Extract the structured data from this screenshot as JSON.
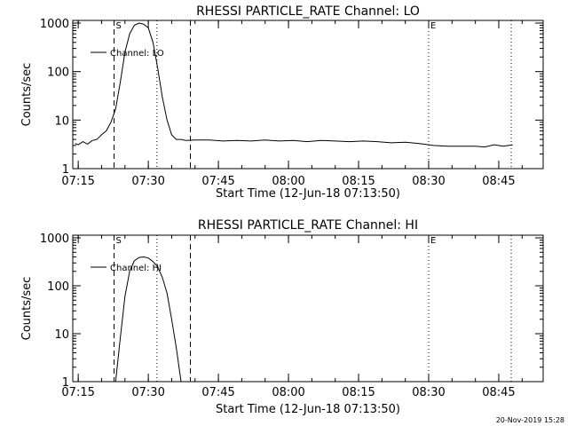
{
  "chart_data": [
    {
      "type": "line",
      "title": "RHESSI PARTICLE_RATE Channel: LO",
      "xlabel": "Start Time (12-Jun-18 07:13:50)",
      "ylabel": "Counts/sec",
      "yscale": "log",
      "ylim": [
        1,
        1000
      ],
      "xlim": [
        "07:13:50",
        "08:54:30"
      ],
      "x_ticks": [
        "07:15",
        "07:30",
        "07:45",
        "08:00",
        "08:15",
        "08:30",
        "08:45"
      ],
      "y_ticks": [
        "1",
        "10",
        "100",
        "1000"
      ],
      "legend": {
        "position": "top-left",
        "entries": [
          "Channel: LO"
        ]
      },
      "markers": [
        {
          "label": "S",
          "time": "07:22:40",
          "style": "dashed"
        },
        {
          "label": "",
          "time": "07:39:00",
          "style": "dashed"
        },
        {
          "label": "",
          "time": "07:31:50",
          "style": "dotted"
        },
        {
          "label": "E",
          "time": "08:30:00",
          "style": "dotted"
        },
        {
          "label": "",
          "time": "08:47:40",
          "style": "dotted"
        }
      ],
      "series": [
        {
          "x": [
            "07:14:20",
            "07:15:00",
            "07:16:00",
            "07:17:00",
            "07:18:00",
            "07:19:00",
            "07:20:00",
            "07:21:00",
            "07:22:00",
            "07:23:00",
            "07:24:00",
            "07:25:00",
            "07:26:00",
            "07:27:00",
            "07:28:00",
            "07:29:00",
            "07:30:00",
            "07:31:00",
            "07:32:00",
            "07:33:00",
            "07:34:00",
            "07:35:00",
            "07:36:00",
            "07:37:00",
            "07:38:00",
            "07:40:00",
            "07:43:00",
            "07:46:00",
            "07:49:00",
            "07:52:00",
            "07:55:00",
            "07:58:00",
            "08:01:00",
            "08:04:00",
            "08:07:00",
            "08:10:00",
            "08:13:00",
            "08:16:00",
            "08:19:00",
            "08:22:00",
            "08:25:00",
            "08:28:00",
            "08:31:00",
            "08:34:00",
            "08:37:00",
            "08:40:00",
            "08:42:00",
            "08:44:00",
            "08:46:00",
            "08:48:00"
          ],
          "values": [
            3.3,
            3.1,
            3.6,
            3.2,
            3.8,
            4.0,
            5.0,
            6.0,
            9.0,
            17,
            60,
            250,
            600,
            900,
            1000,
            950,
            800,
            400,
            120,
            30,
            10,
            5.0,
            4.0,
            4.0,
            3.8,
            3.9,
            3.9,
            3.7,
            3.8,
            3.7,
            3.9,
            3.7,
            3.8,
            3.6,
            3.8,
            3.7,
            3.6,
            3.7,
            3.6,
            3.4,
            3.5,
            3.3,
            3.0,
            2.9,
            2.9,
            2.9,
            2.8,
            3.1,
            2.9,
            3.1
          ]
        }
      ]
    },
    {
      "type": "line",
      "title": "RHESSI PARTICLE_RATE Channel: HI",
      "xlabel": "Start Time (12-Jun-18 07:13:50)",
      "ylabel": "Counts/sec",
      "yscale": "log",
      "ylim": [
        1,
        1000
      ],
      "xlim": [
        "07:13:50",
        "08:54:30"
      ],
      "x_ticks": [
        "07:15",
        "07:30",
        "07:45",
        "08:00",
        "08:15",
        "08:30",
        "08:45"
      ],
      "y_ticks": [
        "1",
        "10",
        "100",
        "1000"
      ],
      "legend": {
        "position": "top-left",
        "entries": [
          "Channel: HI"
        ]
      },
      "markers": [
        {
          "label": "S",
          "time": "07:22:40",
          "style": "dashed"
        },
        {
          "label": "",
          "time": "07:39:00",
          "style": "dashed"
        },
        {
          "label": "",
          "time": "07:31:50",
          "style": "dotted"
        },
        {
          "label": "E",
          "time": "08:30:00",
          "style": "dotted"
        },
        {
          "label": "",
          "time": "08:47:40",
          "style": "dotted"
        }
      ],
      "series": [
        {
          "x": [
            "07:23:00",
            "07:24:00",
            "07:25:00",
            "07:26:00",
            "07:27:00",
            "07:28:00",
            "07:29:00",
            "07:30:00",
            "07:31:00",
            "07:32:00",
            "07:33:00",
            "07:34:00",
            "07:35:00",
            "07:36:00",
            "07:37:00"
          ],
          "values": [
            1.0,
            8,
            60,
            200,
            330,
            390,
            400,
            380,
            320,
            250,
            150,
            70,
            20,
            5,
            1.0
          ]
        }
      ]
    }
  ],
  "footer": {
    "timestamp": "20-Nov-2019 15:28"
  }
}
